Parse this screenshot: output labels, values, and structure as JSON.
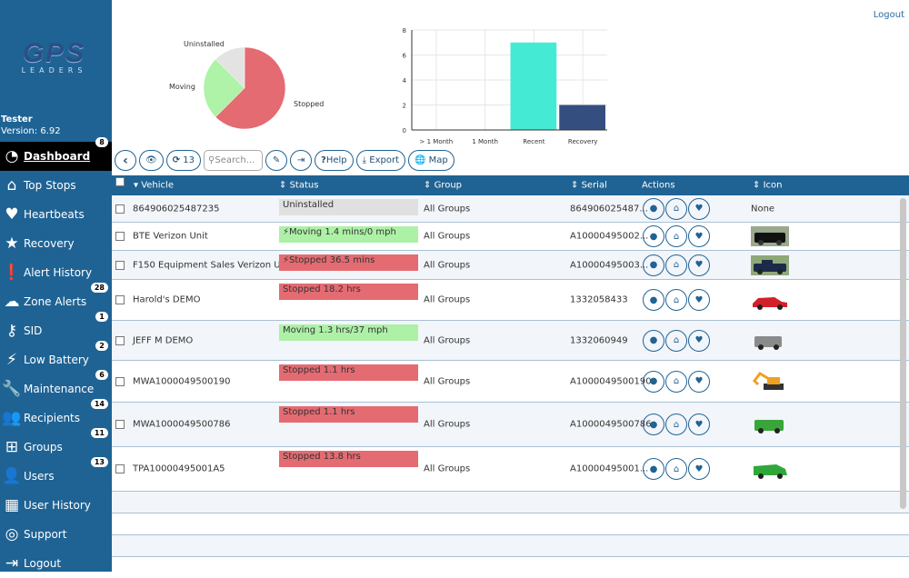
{
  "header": {
    "logout": "Logout"
  },
  "sidebar": {
    "logo": {
      "main": "GPS",
      "sub": "LEADERS"
    },
    "user": "Tester",
    "version": "Version: 6.92",
    "items": [
      {
        "label": "Dashboard",
        "icon": "pie-chart-icon",
        "glyph": "◔",
        "badge": "8"
      },
      {
        "label": "Top Stops",
        "icon": "home-icon",
        "glyph": "⌂",
        "badge": null
      },
      {
        "label": "Heartbeats",
        "icon": "heart-icon",
        "glyph": "♥",
        "badge": null
      },
      {
        "label": "Recovery",
        "icon": "star-icon",
        "glyph": "★",
        "badge": null
      },
      {
        "label": "Alert History",
        "icon": "alert-icon",
        "glyph": "❗",
        "badge": null
      },
      {
        "label": "Zone Alerts",
        "icon": "cloud-icon",
        "glyph": "☁",
        "badge": "28"
      },
      {
        "label": "SID",
        "icon": "key-icon",
        "glyph": "⚷",
        "badge": "1"
      },
      {
        "label": "Low Battery",
        "icon": "plug-icon",
        "glyph": "⚡",
        "badge": "2"
      },
      {
        "label": "Maintenance",
        "icon": "wrench-icon",
        "glyph": "🔧",
        "badge": "6"
      },
      {
        "label": "Recipients",
        "icon": "users-icon",
        "glyph": "👥",
        "badge": "14"
      },
      {
        "label": "Groups",
        "icon": "sitemap-icon",
        "glyph": "⊞",
        "badge": "11"
      },
      {
        "label": "Users",
        "icon": "user-icon",
        "glyph": "👤",
        "badge": "13"
      },
      {
        "label": "User History",
        "icon": "calendar-icon",
        "glyph": "▦",
        "badge": null
      },
      {
        "label": "Support",
        "icon": "life-ring-icon",
        "glyph": "◎",
        "badge": null
      },
      {
        "label": "Logout",
        "icon": "sign-out-icon",
        "glyph": "⇥",
        "badge": null
      }
    ]
  },
  "chart_data": [
    {
      "type": "pie",
      "slices": [
        {
          "label": "Stopped",
          "value": 5,
          "color": "#e46b72"
        },
        {
          "label": "Moving",
          "value": 2,
          "color": "#aef3a8"
        },
        {
          "label": "Uninstalled",
          "value": 1,
          "color": "#e3e3e3"
        }
      ]
    },
    {
      "type": "bar",
      "categories": [
        "> 1 Month",
        "1 Month",
        "Recent",
        "Recovery"
      ],
      "values": [
        0,
        0,
        7,
        2
      ],
      "colors": [
        "#45ead5",
        "#45ead5",
        "#45ead5",
        "#344e80"
      ],
      "ylim": [
        0,
        8
      ],
      "yticks": [
        "0",
        "2",
        "4",
        "6",
        "8"
      ],
      "grid": true
    }
  ],
  "toolbar": {
    "back": "‹",
    "view": "👁",
    "refresh": "13",
    "search_placeholder": "Search...",
    "edit": "✎",
    "exit": "⇥",
    "help": "Help",
    "export": "Export",
    "map": "Map"
  },
  "table": {
    "headers": {
      "vehicle": "Vehicle",
      "status": "Status",
      "group": "Group",
      "serial": "Serial",
      "actions": "Actions",
      "icon": "Icon"
    },
    "rows": [
      {
        "vehicle": "864906025487235",
        "status": "Uninstalled",
        "state": "uninstalled",
        "group": "All Groups",
        "serial": "864906025487...",
        "icon": "None",
        "vicon": "none"
      },
      {
        "vehicle": "BTE Verizon Unit",
        "status": "⚡Moving  1.4  mins/0  mph",
        "state": "moving",
        "group": "All Groups",
        "serial": "A10000495002...",
        "icon": "",
        "vicon": "photo-suv"
      },
      {
        "vehicle": "F150 Equipment Sales Verizon U",
        "status": "⚡Stopped  36.5  mins",
        "state": "stopped",
        "group": "All Groups",
        "serial": "A10000495003...",
        "icon": "",
        "vicon": "photo-truck"
      },
      {
        "vehicle": "Harold's DEMO",
        "status": "Stopped 18.2 hrs",
        "state": "stopped",
        "group": "All Groups",
        "serial": "1332058433",
        "icon": "",
        "vicon": "red-car"
      },
      {
        "vehicle": "JEFF M DEMO",
        "status": "Moving 1.3 hrs/37 mph",
        "state": "moving",
        "group": "All Groups",
        "serial": "1332060949",
        "icon": "",
        "vicon": "gray-suv"
      },
      {
        "vehicle": "MWA1000049500190",
        "status": "Stopped 1.1 hrs",
        "state": "stopped",
        "group": "All Groups",
        "serial": "A1000049500190",
        "icon": "",
        "vicon": "excavator"
      },
      {
        "vehicle": "MWA1000049500786",
        "status": "Stopped 1.1 hrs",
        "state": "stopped",
        "group": "All Groups",
        "serial": "A1000049500786",
        "icon": "",
        "vicon": "green-suv"
      },
      {
        "vehicle": "TPA10000495001A5",
        "status": "Stopped 13.8 hrs",
        "state": "stopped",
        "group": "All Groups",
        "serial": "A10000495001...",
        "icon": "",
        "vicon": "green-van"
      }
    ]
  }
}
